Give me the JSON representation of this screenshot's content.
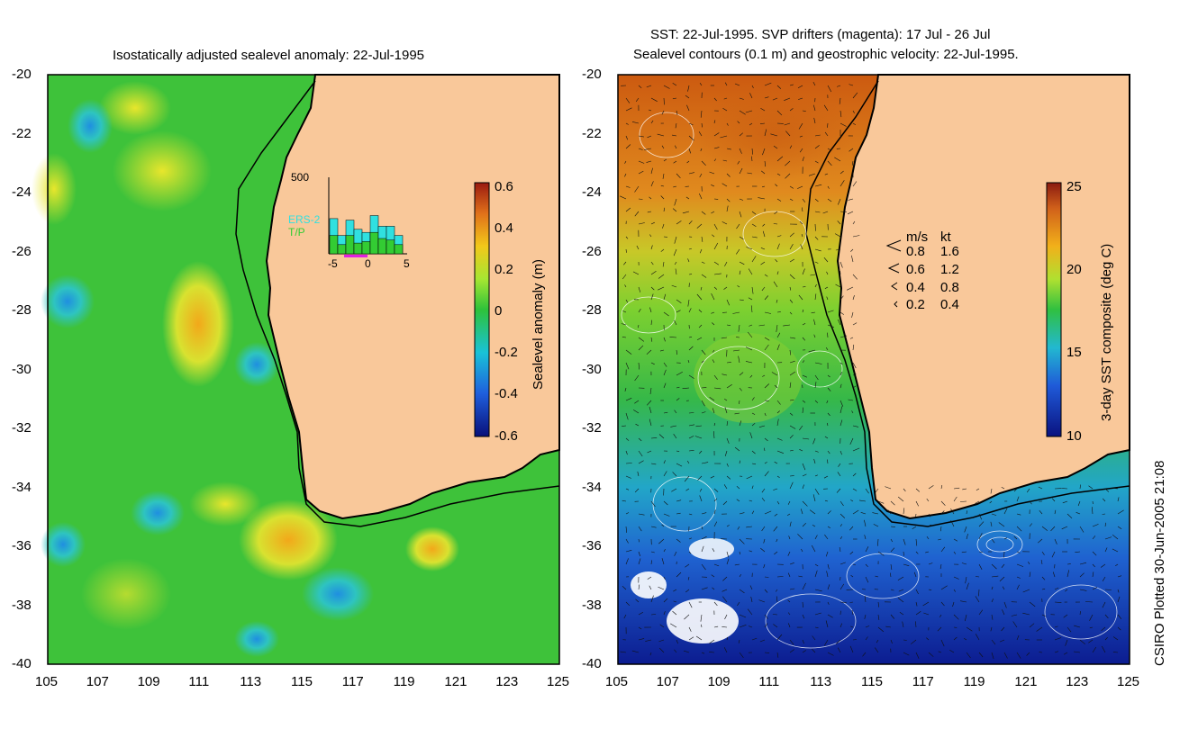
{
  "left_panel": {
    "title": "Isostatically adjusted sealevel anomaly: 22-Jul-1995",
    "colorbar_label": "Sealevel anomaly (m)",
    "colorbar_ticks": [
      "0.6",
      "0.4",
      "0.2",
      "0",
      "-0.2",
      "-0.4",
      "-0.6"
    ],
    "inset": {
      "ymax_label": "500",
      "xtick_labels": [
        "-5",
        "0",
        "5"
      ],
      "series_labels": [
        "ERS-2",
        "T/P"
      ],
      "series_colors": [
        "#30e0e0",
        "#33cc33"
      ],
      "bars_total": [
        230,
        120,
        220,
        160,
        140,
        250,
        180,
        180,
        120
      ],
      "bars_tp": [
        120,
        60,
        120,
        70,
        80,
        140,
        100,
        90,
        60
      ]
    }
  },
  "right_panel": {
    "title_line1": "SST: 22-Jul-1995. SVP drifters (magenta): 17 Jul - 26 Jul",
    "title_line2": "Sealevel contours (0.1 m) and geostrophic velocity: 22-Jul-1995.",
    "colorbar_label": "3-day SST composite (deg C)",
    "colorbar_ticks": [
      "25",
      "20",
      "15",
      "10"
    ],
    "velocity_legend": {
      "header_ms": "m/s",
      "header_kt": "kt",
      "rows": [
        {
          "ms": "0.8",
          "kt": "1.6"
        },
        {
          "ms": "0.6",
          "kt": "1.2"
        },
        {
          "ms": "0.4",
          "kt": "0.8"
        },
        {
          "ms": "0.2",
          "kt": "0.4"
        }
      ]
    }
  },
  "axes": {
    "y_ticks": [
      "-20",
      "-22",
      "-24",
      "-26",
      "-28",
      "-30",
      "-32",
      "-34",
      "-36",
      "-38",
      "-40"
    ],
    "x_ticks": [
      "105",
      "107",
      "109",
      "111",
      "113",
      "115",
      "117",
      "119",
      "121",
      "123",
      "125"
    ]
  },
  "credit": "CSIRO Plotted 30-Jun-2005 21:08",
  "colors": {
    "land": "#f9c89a",
    "coast": "#000000",
    "ocean_mid": "#33cc33",
    "sst_warm": "#cc6611",
    "sst_cold": "#1133aa"
  }
}
